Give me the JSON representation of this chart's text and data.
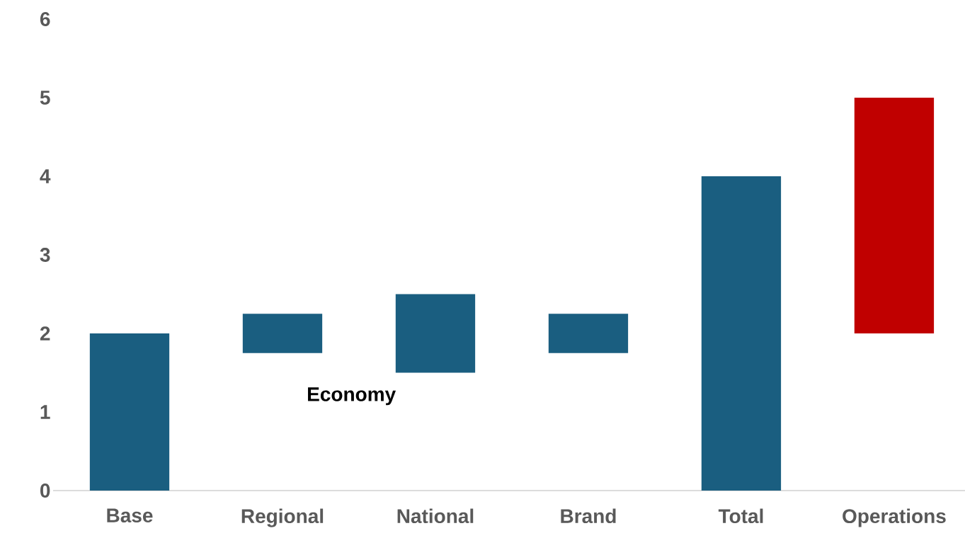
{
  "chart_data": {
    "type": "bar",
    "categories": [
      "Base",
      "Regional",
      "National",
      "Brand",
      "Total",
      "Operations"
    ],
    "values": [
      2,
      0.5,
      1,
      0.5,
      4,
      3
    ],
    "base": [
      0,
      1.75,
      1.5,
      1.75,
      0,
      2
    ],
    "colors": [
      "#1a5e80",
      "#1a5e80",
      "#1a5e80",
      "#1a5e80",
      "#1a5e80",
      "#c00000"
    ],
    "ylim": [
      0,
      6
    ],
    "yticks": [
      0,
      1,
      2,
      3,
      4,
      5,
      6
    ],
    "annotations": [
      "Economy"
    ]
  }
}
